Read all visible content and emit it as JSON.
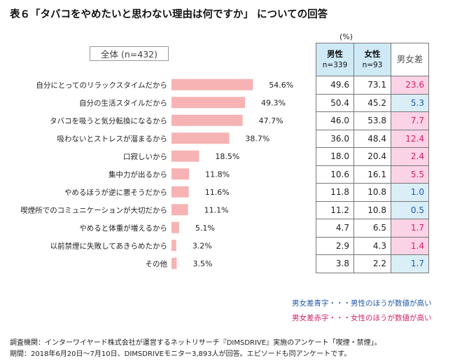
{
  "title": "表６「タバコをやめたいと思わない理由は何ですか」 についての回答",
  "total_label": "全体 (n=432)",
  "unit": "(%)",
  "table": {
    "header_male": "男性",
    "header_male_n": "n=339",
    "header_female": "女性",
    "header_female_n": "n=93",
    "header_diff": "男女差"
  },
  "colors": {
    "bar": "#f7b3b3",
    "male_higher": "#d9eef7",
    "female_higher": "#fbd3e6",
    "female_higher_text": "#d2236a",
    "male_higher_text": "#1f5aa8",
    "header_bg": "#cfe9f6"
  },
  "chart_data": {
    "type": "bar",
    "orientation": "horizontal",
    "categories": [
      "自分にとってのリラックスタイムだから",
      "自分の生活スタイルだから",
      "タバコを吸うと気分転換になるから",
      "吸わないとストレスが溜まるから",
      "口寂しいから",
      "集中力が出るから",
      "やめるほうが逆に悪そうだから",
      "喫煙所でのコミュニケーションが大切だから",
      "やめると体重が増えるから",
      "以前禁煙に失敗してあきらめたから",
      "その他"
    ],
    "values": [
      54.6,
      49.3,
      47.7,
      38.7,
      18.5,
      11.8,
      11.6,
      11.1,
      5.1,
      3.2,
      3.5
    ],
    "value_labels": [
      "54.6%",
      "49.3%",
      "47.7%",
      "38.7%",
      "18.5%",
      "11.8%",
      "11.6%",
      "11.1%",
      "5.1%",
      "3.2%",
      "3.5%"
    ],
    "male": [
      "49.6",
      "50.4",
      "46.0",
      "36.0",
      "18.0",
      "10.6",
      "11.8",
      "11.2",
      "4.7",
      "2.9",
      "3.8"
    ],
    "female": [
      "73.1",
      "45.2",
      "53.8",
      "48.4",
      "20.4",
      "16.1",
      "10.8",
      "10.8",
      "6.5",
      "4.3",
      "2.2"
    ],
    "diff": [
      "23.6",
      "5.3",
      "7.7",
      "12.4",
      "2.4",
      "5.5",
      "1.0",
      "0.5",
      "1.7",
      "1.4",
      "1.7"
    ],
    "diff_higher": [
      "female",
      "male",
      "female",
      "female",
      "female",
      "female",
      "male",
      "male",
      "female",
      "female",
      "male"
    ],
    "xlim": [
      0,
      60
    ]
  },
  "notes": {
    "blue": "男女差青字・・・男性のほうが数値が高い",
    "red": "男女差赤字・・・女性のほうが数値が高い"
  },
  "footer": {
    "line1": "調査機関：インターワイヤード株式会社が運営するネットリサーチ『DIMSDRIVE』実施のアンケート「喫煙・禁煙」。",
    "line2": "期間：2018年6月20日～7月10日、DIMSDRIVEモニター3,893人が回答。エピソードも同アンケートです。"
  }
}
